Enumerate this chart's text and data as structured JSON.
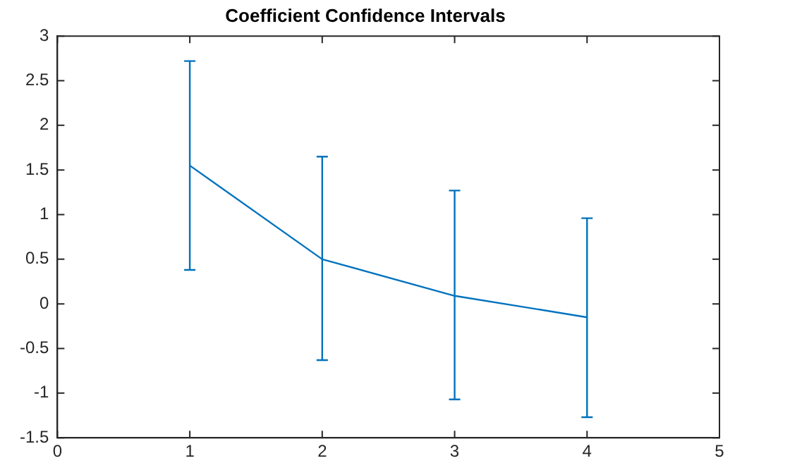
{
  "chart_data": {
    "type": "line",
    "title": "Coefficient Confidence Intervals",
    "x": [
      1,
      2,
      3,
      4
    ],
    "series": [
      {
        "color": "#0072bd",
        "values": [
          1.55,
          0.5,
          0.09,
          -0.15
        ],
        "errors": [
          [
            0.38,
            2.72
          ],
          [
            -0.63,
            1.65
          ],
          [
            -1.07,
            1.27
          ],
          [
            -1.27,
            0.96
          ]
        ]
      }
    ],
    "xlim": [
      0,
      5
    ],
    "xticks": [
      0,
      1,
      2,
      3,
      4,
      5
    ],
    "ylim": [
      -1.5,
      3
    ],
    "yticks": [
      -1.5,
      -1,
      -0.5,
      0,
      0.5,
      1,
      1.5,
      2,
      2.5,
      3
    ],
    "grid": false,
    "legend": false,
    "marker": "none",
    "line_style": "solid"
  }
}
